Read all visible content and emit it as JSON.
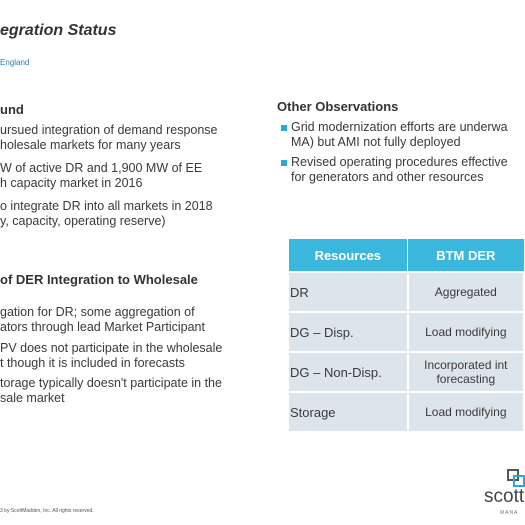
{
  "header": {
    "title": "egration Status",
    "subtitle": "England"
  },
  "left": {
    "heading": "und",
    "bullets": [
      [
        "ursued integration of demand response",
        "holesale markets for many years"
      ],
      [
        "W of active DR and 1,900 MW of EE",
        "h capacity market in 2016"
      ],
      [
        "o integrate DR into all markets in 2018",
        "y, capacity, operating reserve)"
      ]
    ],
    "heading2": "of DER Integration to Wholesale",
    "bullets2": [
      [
        "gation for DR; some aggregation of",
        "ators through lead Market Participant"
      ],
      [
        "PV does not participate in the wholesale",
        "t though it is included in forecasts"
      ],
      [
        "torage typically doesn't participate in the",
        "sale market"
      ]
    ]
  },
  "right": {
    "heading": "Other Observations",
    "bullets": [
      [
        "Grid modernization efforts are underwa",
        "MA) but AMI not fully deployed"
      ],
      [
        "Revised operating procedures effective",
        "for generators and other resources"
      ]
    ]
  },
  "table": {
    "columns": [
      "Resources",
      "BTM DER"
    ],
    "rows": [
      [
        "DR",
        [
          "Aggregated"
        ]
      ],
      [
        "DG – Disp.",
        [
          "Load modifying"
        ]
      ],
      [
        "DG – Non-Disp.",
        [
          "Incorporated int",
          "forecasting"
        ]
      ],
      [
        "Storage",
        [
          "Load modifying"
        ]
      ]
    ]
  },
  "footer": "3 by ScottMadden, Inc. All rights reserved.",
  "logo": {
    "name": "scott",
    "tag": "MANA"
  }
}
